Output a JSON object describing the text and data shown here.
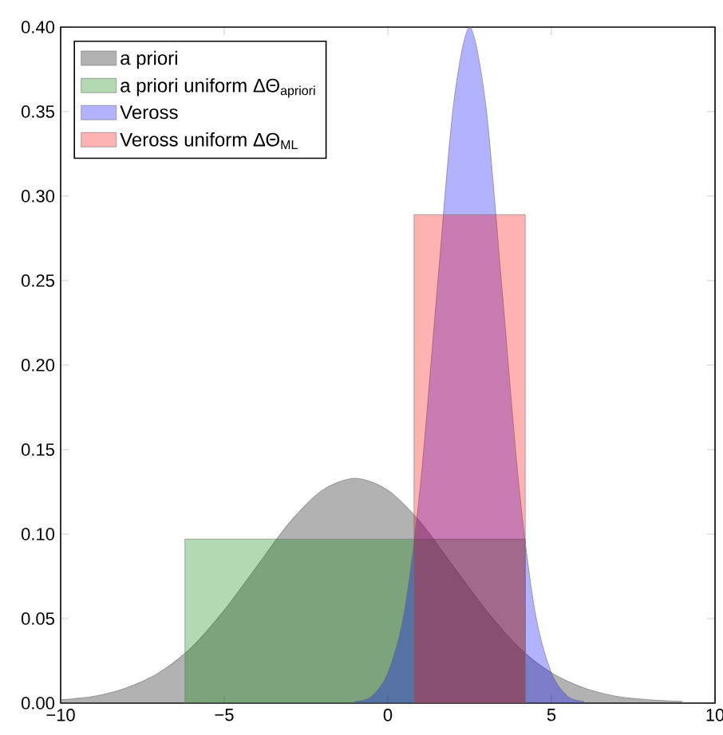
{
  "chart_data": {
    "type": "area",
    "xlim": [
      -10,
      10
    ],
    "ylim": [
      0,
      0.4
    ],
    "xticks": [
      {
        "value": -10,
        "label": "−10"
      },
      {
        "value": -5,
        "label": "−5"
      },
      0,
      5,
      10
    ],
    "yticks": [
      {
        "value": 0,
        "label": "0.00"
      },
      {
        "value": 0.05,
        "label": "0.05"
      },
      {
        "value": 0.1,
        "label": "0.10"
      },
      {
        "value": 0.15,
        "label": "0.15"
      },
      {
        "value": 0.2,
        "label": "0.20"
      },
      {
        "value": 0.25,
        "label": "0.25"
      },
      {
        "value": 0.3,
        "label": "0.30"
      },
      {
        "value": 0.35,
        "label": "0.35"
      },
      {
        "value": 0.4,
        "label": "0.40"
      }
    ],
    "legend": "top left",
    "series": [
      {
        "name": "a priori",
        "color": "#000000",
        "x": [
          -10,
          -9,
          -8,
          -7,
          -6,
          -5,
          -4,
          -3,
          -2,
          -1,
          0,
          1,
          2,
          3,
          4,
          5,
          6,
          7,
          8,
          9
        ],
        "values": [
          0.002,
          0.004,
          0.009,
          0.018,
          0.033,
          0.055,
          0.081,
          0.107,
          0.126,
          0.133,
          0.126,
          0.107,
          0.081,
          0.055,
          0.033,
          0.018,
          0.009,
          0.004,
          0.002,
          0.001
        ]
      },
      {
        "name": "a priori uniform ΔΘ$_{apriori}$",
        "color": "#008000",
        "x": [
          -6.2,
          4.2
        ],
        "values": [
          0.097,
          0.097
        ]
      },
      {
        "name": "Veross",
        "color": "#0000ff",
        "x": [
          -1,
          -0.5,
          0,
          0.5,
          1,
          1.5,
          2,
          2.5,
          3,
          3.5,
          4,
          4.5,
          5,
          5.5,
          6
        ],
        "values": [
          0.001,
          0.004,
          0.018,
          0.054,
          0.13,
          0.243,
          0.353,
          0.4,
          0.353,
          0.243,
          0.13,
          0.054,
          0.018,
          0.004,
          0.001
        ]
      },
      {
        "name": "Veross uniform ΔΘ$_{ML}$",
        "color": "#ff0000",
        "x": [
          0.8,
          4.2
        ],
        "values": [
          0.289,
          0.289
        ]
      }
    ]
  }
}
